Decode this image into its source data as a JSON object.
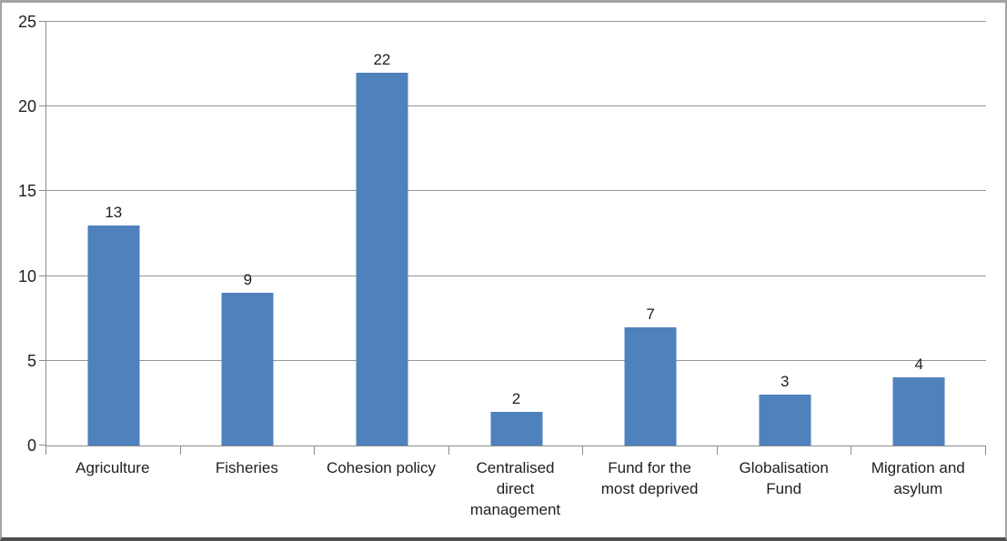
{
  "chart_data": {
    "type": "bar",
    "title": "",
    "xlabel": "",
    "ylabel": "",
    "categories": [
      "Agriculture",
      "Fisheries",
      "Cohesion policy",
      "Centralised direct management",
      "Fund for the most deprived",
      "Globalisation Fund",
      "Migration and asylum"
    ],
    "values": [
      13,
      9,
      22,
      2,
      7,
      3,
      4
    ],
    "data_labels": [
      "13",
      "9",
      "22",
      "2",
      "7",
      "3",
      "4"
    ],
    "ylim": [
      0,
      25
    ],
    "yticks": [
      0,
      5,
      10,
      15,
      20,
      25
    ],
    "grid": true,
    "legend_position": "none",
    "colors": {
      "bar": "#4F81BD",
      "gridline": "#969696",
      "axis": "#8C8C8C",
      "text": "#1F1F1F",
      "frame_border": "#A3A3A3",
      "frame_border_bottom": "#4D4D4D"
    }
  }
}
